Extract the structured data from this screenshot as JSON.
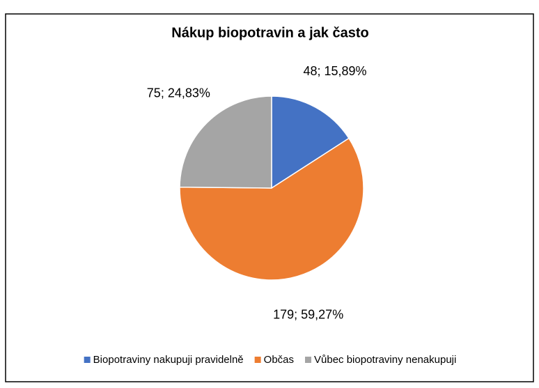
{
  "chart_data": {
    "type": "pie",
    "title": "Nákup biopotravin a jak často",
    "categories": [
      "Biopotraviny nakupuji pravidelně",
      "Občas",
      "Vůbec biopotraviny nenakupuji"
    ],
    "values": [
      48,
      179,
      75
    ],
    "value_labels": [
      "48; 15,89%",
      "179; 59,27%",
      "75; 24,83%"
    ],
    "colors": [
      "#4472c4",
      "#ed7d31",
      "#a5a5a5"
    ],
    "legend": "bottom"
  }
}
